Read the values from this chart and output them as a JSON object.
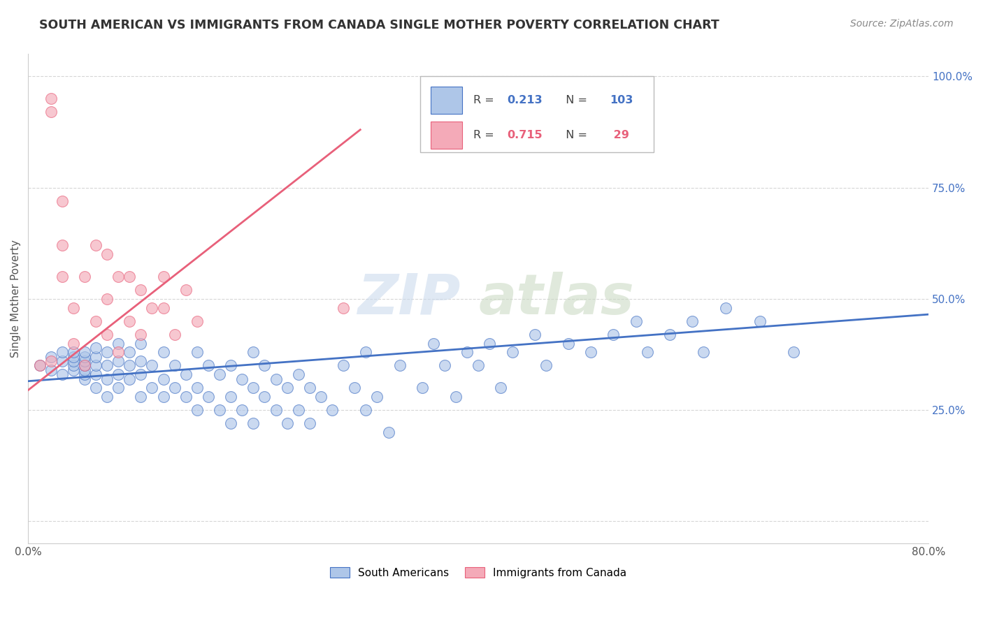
{
  "title": "SOUTH AMERICAN VS IMMIGRANTS FROM CANADA SINGLE MOTHER POVERTY CORRELATION CHART",
  "source": "Source: ZipAtlas.com",
  "ylabel": "Single Mother Poverty",
  "xlim": [
    0.0,
    0.8
  ],
  "ylim": [
    -0.05,
    1.05
  ],
  "xticks": [
    0.0,
    0.1,
    0.2,
    0.3,
    0.4,
    0.5,
    0.6,
    0.7,
    0.8
  ],
  "yticks": [
    0.0,
    0.25,
    0.5,
    0.75,
    1.0
  ],
  "yticklabels_right": [
    "",
    "25.0%",
    "50.0%",
    "75.0%",
    "100.0%"
  ],
  "watermark_zip": "ZIP",
  "watermark_atlas": "atlas",
  "blue_color": "#aec6e8",
  "pink_color": "#f4aab8",
  "blue_line_color": "#4472c4",
  "pink_line_color": "#e8607a",
  "south_americans_x": [
    0.01,
    0.02,
    0.02,
    0.03,
    0.03,
    0.03,
    0.04,
    0.04,
    0.04,
    0.04,
    0.04,
    0.05,
    0.05,
    0.05,
    0.05,
    0.05,
    0.05,
    0.05,
    0.06,
    0.06,
    0.06,
    0.06,
    0.06,
    0.07,
    0.07,
    0.07,
    0.07,
    0.08,
    0.08,
    0.08,
    0.08,
    0.09,
    0.09,
    0.09,
    0.1,
    0.1,
    0.1,
    0.1,
    0.11,
    0.11,
    0.12,
    0.12,
    0.12,
    0.13,
    0.13,
    0.14,
    0.14,
    0.15,
    0.15,
    0.15,
    0.16,
    0.16,
    0.17,
    0.17,
    0.18,
    0.18,
    0.18,
    0.19,
    0.19,
    0.2,
    0.2,
    0.2,
    0.21,
    0.21,
    0.22,
    0.22,
    0.23,
    0.23,
    0.24,
    0.24,
    0.25,
    0.25,
    0.26,
    0.27,
    0.28,
    0.29,
    0.3,
    0.3,
    0.31,
    0.32,
    0.33,
    0.35,
    0.36,
    0.37,
    0.38,
    0.39,
    0.4,
    0.41,
    0.42,
    0.43,
    0.45,
    0.46,
    0.48,
    0.5,
    0.52,
    0.54,
    0.55,
    0.57,
    0.59,
    0.6,
    0.62,
    0.65,
    0.68
  ],
  "south_americans_y": [
    0.35,
    0.34,
    0.37,
    0.33,
    0.36,
    0.38,
    0.34,
    0.35,
    0.36,
    0.37,
    0.38,
    0.32,
    0.33,
    0.34,
    0.35,
    0.36,
    0.37,
    0.38,
    0.3,
    0.33,
    0.35,
    0.37,
    0.39,
    0.28,
    0.32,
    0.35,
    0.38,
    0.3,
    0.33,
    0.36,
    0.4,
    0.32,
    0.35,
    0.38,
    0.28,
    0.33,
    0.36,
    0.4,
    0.3,
    0.35,
    0.28,
    0.32,
    0.38,
    0.3,
    0.35,
    0.28,
    0.33,
    0.25,
    0.3,
    0.38,
    0.28,
    0.35,
    0.25,
    0.33,
    0.22,
    0.28,
    0.35,
    0.25,
    0.32,
    0.22,
    0.3,
    0.38,
    0.28,
    0.35,
    0.25,
    0.32,
    0.22,
    0.3,
    0.25,
    0.33,
    0.22,
    0.3,
    0.28,
    0.25,
    0.35,
    0.3,
    0.25,
    0.38,
    0.28,
    0.2,
    0.35,
    0.3,
    0.4,
    0.35,
    0.28,
    0.38,
    0.35,
    0.4,
    0.3,
    0.38,
    0.42,
    0.35,
    0.4,
    0.38,
    0.42,
    0.45,
    0.38,
    0.42,
    0.45,
    0.38,
    0.48,
    0.45,
    0.38
  ],
  "canada_x": [
    0.01,
    0.02,
    0.02,
    0.02,
    0.03,
    0.03,
    0.03,
    0.04,
    0.04,
    0.05,
    0.05,
    0.06,
    0.06,
    0.07,
    0.07,
    0.07,
    0.08,
    0.08,
    0.09,
    0.09,
    0.1,
    0.1,
    0.11,
    0.12,
    0.12,
    0.13,
    0.14,
    0.15,
    0.28
  ],
  "canada_y": [
    0.35,
    0.36,
    0.92,
    0.95,
    0.55,
    0.62,
    0.72,
    0.4,
    0.48,
    0.35,
    0.55,
    0.45,
    0.62,
    0.42,
    0.5,
    0.6,
    0.38,
    0.55,
    0.45,
    0.55,
    0.42,
    0.52,
    0.48,
    0.48,
    0.55,
    0.42,
    0.52,
    0.45,
    0.48
  ],
  "blue_trend_x": [
    0.0,
    0.8
  ],
  "blue_trend_y": [
    0.315,
    0.465
  ],
  "pink_trend_x": [
    0.0,
    0.295
  ],
  "pink_trend_y": [
    0.295,
    0.88
  ]
}
